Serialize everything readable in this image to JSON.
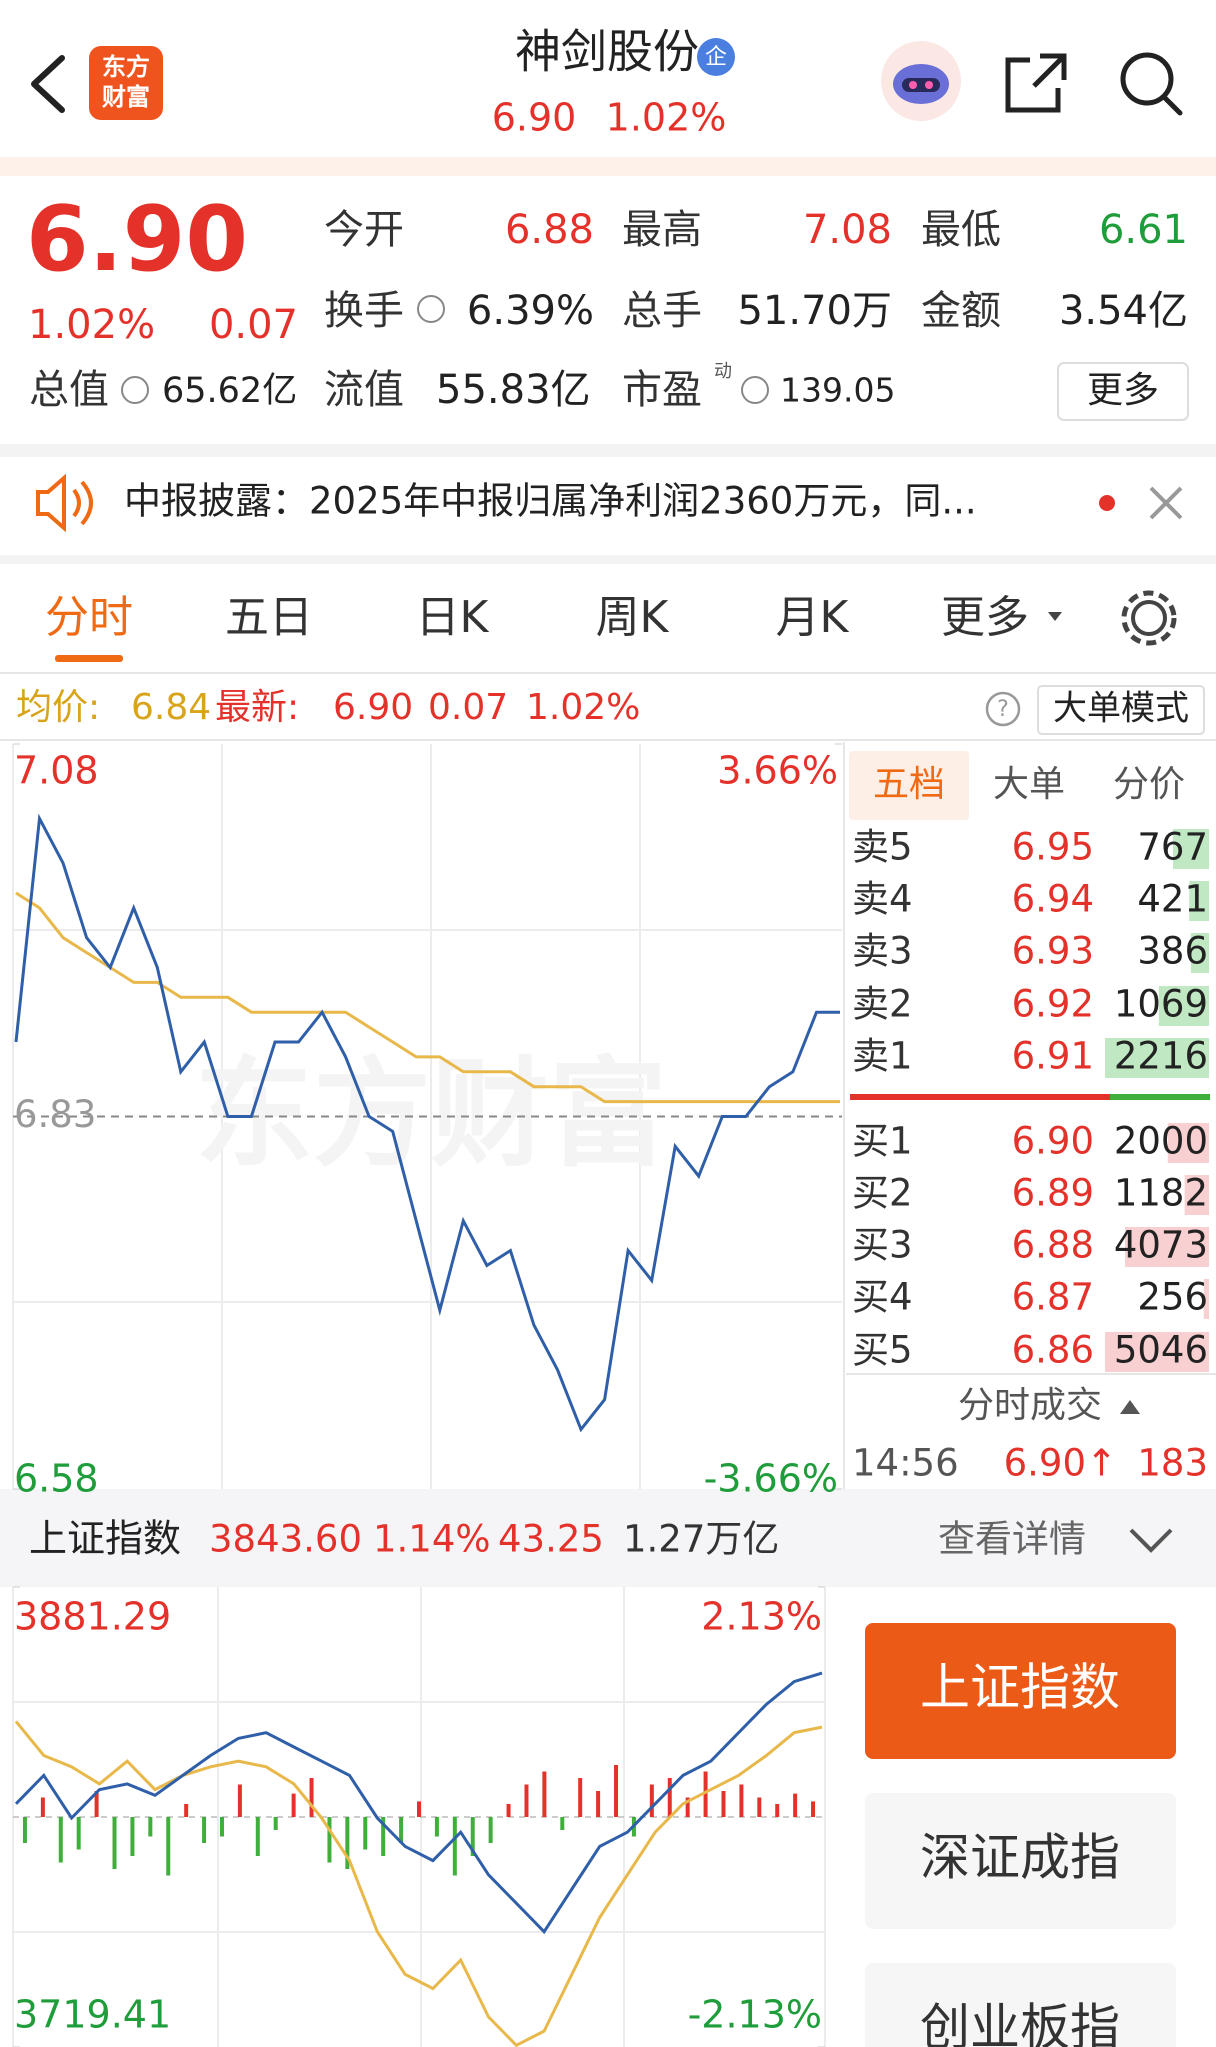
{
  "header": {
    "logo": [
      "东方",
      "财富"
    ],
    "title": "神剑股份",
    "badge": "企",
    "price": "6.90",
    "change_pct": "1.02%"
  },
  "quote": {
    "price": "6.90",
    "change_pct": "1.02%",
    "change": "0.07",
    "fields": [
      {
        "label": "今开",
        "value": "6.88",
        "color": "#e4322b"
      },
      {
        "label": "最高",
        "value": "7.08",
        "color": "#e4322b"
      },
      {
        "label": "最低",
        "value": "6.61",
        "color": "#1f9d3a"
      },
      {
        "label": "换手",
        "value": "6.39%",
        "color": "#222222"
      },
      {
        "label": "总手",
        "value": "51.70万",
        "color": "#222222"
      },
      {
        "label": "金额",
        "value": "3.54亿",
        "color": "#222222"
      }
    ],
    "total_cap": {
      "label": "总值",
      "value": "65.62亿"
    },
    "float_cap": {
      "label": "流值",
      "value": "55.83亿"
    },
    "pe": {
      "label": "市盈",
      "sup": "动",
      "value": "139.05"
    },
    "more": "更多"
  },
  "news": {
    "text": "中报披露：2025年中报归属净利润2360万元，同..."
  },
  "tabs": [
    "分时",
    "五日",
    "日K",
    "周K",
    "月K",
    "更多"
  ],
  "info": {
    "avg_label": "均价:",
    "avg": "6.84",
    "latest_label": "最新:",
    "latest": "6.90",
    "change": "0.07",
    "pct": "1.02%",
    "help": "?",
    "mode": "大单模式"
  },
  "intraday_chart": {
    "type": "line",
    "watermark": "东方财富",
    "ylim": [
      6.58,
      7.08
    ],
    "yticks": [
      6.58,
      7.08
    ],
    "y2lim": [
      -3.66,
      3.66
    ],
    "y2ticks": [
      {
        "value": -3.66,
        "label": "-3.66%"
      },
      {
        "value": 3.66,
        "label": "3.66%"
      }
    ],
    "prev_close": 6.83,
    "series": [
      {
        "color": "#2f5fa8",
        "values": [
          6.88,
          7.03,
          7.0,
          6.95,
          6.93,
          6.97,
          6.93,
          6.86,
          6.88,
          6.83,
          6.83,
          6.88,
          6.88,
          6.9,
          6.87,
          6.83,
          6.82,
          6.76,
          6.7,
          6.76,
          6.73,
          6.74,
          6.69,
          6.66,
          6.62,
          6.64,
          6.74,
          6.72,
          6.81,
          6.79,
          6.83,
          6.83,
          6.85,
          6.86,
          6.9,
          6.9
        ]
      },
      {
        "color": "#e8b84a",
        "values": [
          6.98,
          6.97,
          6.95,
          6.94,
          6.93,
          6.92,
          6.92,
          6.91,
          6.91,
          6.91,
          6.9,
          6.9,
          6.9,
          6.9,
          6.9,
          6.89,
          6.88,
          6.87,
          6.87,
          6.86,
          6.86,
          6.86,
          6.85,
          6.85,
          6.85,
          6.84,
          6.84,
          6.84,
          6.84,
          6.84,
          6.84,
          6.84,
          6.84,
          6.84,
          6.84,
          6.84
        ]
      }
    ]
  },
  "order_book": {
    "tabs": [
      "五档",
      "大单",
      "分价"
    ],
    "asks": [
      {
        "label": "卖5",
        "price": "6.95",
        "volume": 767
      },
      {
        "label": "卖4",
        "price": "6.94",
        "volume": 421
      },
      {
        "label": "卖3",
        "price": "6.93",
        "volume": 386
      },
      {
        "label": "卖2",
        "price": "6.92",
        "volume": 1069
      },
      {
        "label": "卖1",
        "price": "6.91",
        "volume": 2216
      }
    ],
    "bids": [
      {
        "label": "买1",
        "price": "6.90",
        "volume": 2000
      },
      {
        "label": "买2",
        "price": "6.89",
        "volume": 1182
      },
      {
        "label": "买3",
        "price": "6.88",
        "volume": 4073
      },
      {
        "label": "买4",
        "price": "6.87",
        "volume": 256
      },
      {
        "label": "买5",
        "price": "6.86",
        "volume": 5046
      }
    ],
    "trades_title": "分时成交",
    "trade": {
      "time": "14:56",
      "price": "6.90↑",
      "volume": "183"
    }
  },
  "index_bar": {
    "name": "上证指数",
    "value": "3843.60",
    "pct": "1.14%",
    "change": "43.25",
    "turnover": "1.27万亿",
    "detail": "查看详情"
  },
  "index_chart": {
    "type": "line",
    "ylim": [
      3719.41,
      3881.29
    ],
    "yticks": [
      3719.41,
      3881.29
    ],
    "y2lim": [
      -2.13,
      2.13
    ],
    "y2ticks": [
      {
        "value": -2.13,
        "label": "-2.13%"
      },
      {
        "value": 2.13,
        "label": "2.13%"
      }
    ],
    "baseline": 3800.35,
    "series": [
      {
        "color": "#2f5fa8",
        "values": [
          3805,
          3815,
          3800,
          3810,
          3812,
          3808,
          3815,
          3822,
          3828,
          3830,
          3825,
          3820,
          3815,
          3800,
          3790,
          3785,
          3795,
          3780,
          3770,
          3760,
          3775,
          3790,
          3795,
          3805,
          3815,
          3820,
          3830,
          3840,
          3848,
          3851
        ]
      },
      {
        "color": "#e8b84a",
        "values": [
          3834,
          3822,
          3818,
          3812,
          3820,
          3810,
          3815,
          3818,
          3820,
          3818,
          3812,
          3800,
          3785,
          3760,
          3745,
          3740,
          3750,
          3730,
          3720,
          3725,
          3745,
          3765,
          3780,
          3795,
          3805,
          3810,
          3815,
          3822,
          3830,
          3832
        ]
      }
    ],
    "bars": [
      -20,
      15,
      -35,
      -25,
      20,
      -40,
      -30,
      -15,
      -45,
      10,
      -20,
      -15,
      25,
      -30,
      -10,
      18,
      30,
      -35,
      -40,
      -25,
      -30,
      -20,
      12,
      -15,
      -45,
      -30,
      -20,
      10,
      25,
      35,
      -10,
      30,
      20,
      40,
      -15,
      25,
      30,
      15,
      35,
      20,
      25,
      15,
      10,
      18,
      12
    ],
    "up_color": "#e4322b",
    "down_color": "#3fae3a"
  },
  "index_buttons": [
    "上证指数",
    "深证成指",
    "创业板指"
  ]
}
